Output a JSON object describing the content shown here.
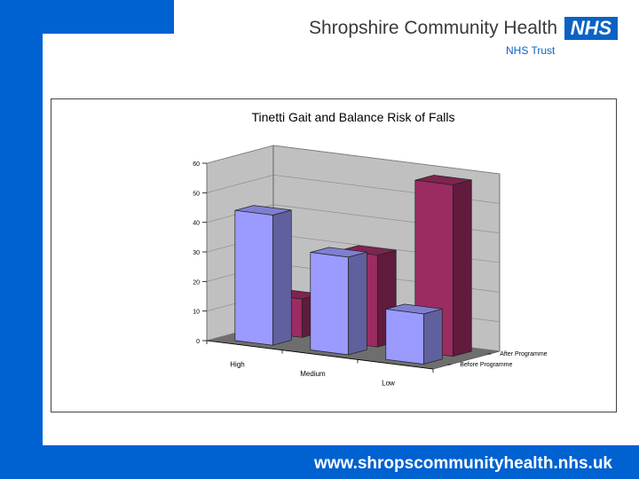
{
  "header": {
    "org_name": "Shropshire Community Health",
    "logo_text": "NHS",
    "trust_name": "NHS Trust"
  },
  "footer": {
    "url": "www.shropscommunityhealth.nhs.uk"
  },
  "colors": {
    "brand_blue": "#0061d1",
    "before_bar": "#9b9bff",
    "after_bar": "#9b2c62",
    "floor": "#6e6e6e",
    "wall": "#c0c0c0"
  },
  "chart_data": {
    "type": "bar",
    "title": "Tinetti Gait and Balance Risk of Falls",
    "categories": [
      "High",
      "Medium",
      "Low"
    ],
    "series": [
      {
        "name": "Before Programme",
        "values": [
          44,
          33,
          17
        ]
      },
      {
        "name": "After Programme",
        "values": [
          13,
          31,
          58
        ]
      }
    ],
    "ylim": [
      0,
      60
    ],
    "yticks": [
      "0",
      "10",
      "20",
      "30",
      "40",
      "50",
      "60"
    ],
    "grid": true,
    "legend": "none"
  }
}
